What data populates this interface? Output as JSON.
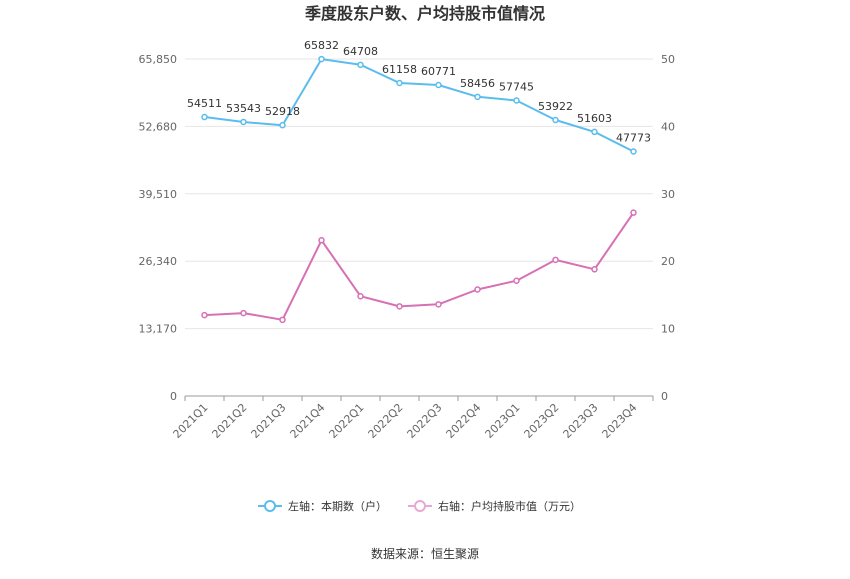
{
  "chart_data": {
    "type": "line",
    "title": "季度股东户数、户均持股市值情况",
    "categories": [
      "2021Q1",
      "2021Q2",
      "2021Q3",
      "2021Q4",
      "2022Q1",
      "2022Q2",
      "2022Q3",
      "2022Q4",
      "2023Q1",
      "2023Q2",
      "2023Q3",
      "2023Q4"
    ],
    "left_axis": {
      "ticks": [
        "0",
        "13,170",
        "26,340",
        "39,510",
        "52,680",
        "65,850"
      ],
      "min": 0,
      "max": 65850
    },
    "right_axis": {
      "ticks": [
        "0",
        "10",
        "20",
        "30",
        "40",
        "50"
      ],
      "min": 0,
      "max": 50
    },
    "grid": true,
    "legend_position": "bottom",
    "series": [
      {
        "name": "左轴：本期数（户）",
        "axis": "left",
        "color": "#5bbcee",
        "values": [
          54511,
          53543,
          52918,
          65832,
          64708,
          61158,
          60771,
          58456,
          57745,
          53922,
          51603,
          47773
        ],
        "labels": [
          "54511",
          "53543",
          "52918",
          "65832",
          "64708",
          "61158",
          "60771",
          "58456",
          "57745",
          "53922",
          "51603",
          "47773"
        ]
      },
      {
        "name": "右轴：户均持股市值（万元）",
        "axis": "right",
        "color": "#d770b4",
        "values": [
          12.0,
          12.3,
          11.3,
          23.1,
          14.8,
          13.3,
          13.6,
          15.8,
          17.1,
          20.2,
          18.8,
          27.2
        ]
      }
    ]
  },
  "source": "数据来源：恒生聚源"
}
